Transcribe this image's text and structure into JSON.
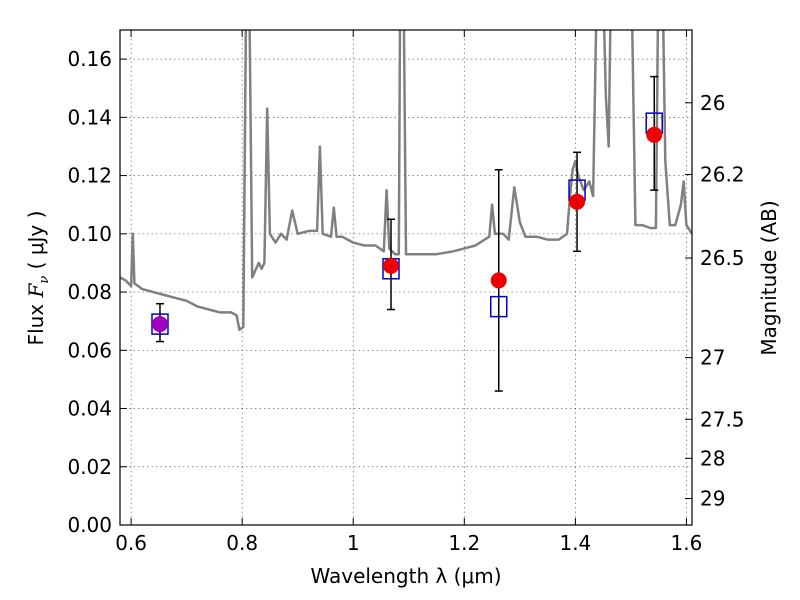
{
  "chart_data": {
    "type": "scatter",
    "xlabel": "Wavelength  λ (μm)",
    "ylabel_parts": [
      "Flux  ",
      "F",
      "ν",
      "  ( μJy )"
    ],
    "ylabel_right": "Magnitude (AB)",
    "xlim": [
      0.58,
      1.61
    ],
    "ylim": [
      0.0,
      0.17
    ],
    "grid": true,
    "x_ticks": [
      0.6,
      0.8,
      1.0,
      1.2,
      1.4,
      1.6
    ],
    "x_tick_labels": [
      "0.6",
      "0.8",
      "1",
      "1.2",
      "1.4",
      "1.6"
    ],
    "y_ticks": [
      0.0,
      0.02,
      0.04,
      0.06,
      0.08,
      0.1,
      0.12,
      0.14,
      0.16
    ],
    "y_tick_labels": [
      "0.00",
      "0.02",
      "0.04",
      "0.06",
      "0.08",
      "0.10",
      "0.12",
      "0.14",
      "0.16"
    ],
    "right_ticks": [
      {
        "flux": 0.145,
        "label": "26"
      },
      {
        "flux": 0.1204,
        "label": "26.2"
      },
      {
        "flux": 0.0917,
        "label": "26.5"
      },
      {
        "flux": 0.0575,
        "label": "27"
      },
      {
        "flux": 0.0363,
        "label": "27.5"
      },
      {
        "flux": 0.0229,
        "label": "28"
      },
      {
        "flux": 0.0091,
        "label": "29"
      }
    ],
    "series": [
      {
        "kind": "line",
        "color": "#808080",
        "points": [
          [
            0.58,
            0.085
          ],
          [
            0.59,
            0.084
          ],
          [
            0.6,
            0.082
          ],
          [
            0.603,
            0.1
          ],
          [
            0.606,
            0.083
          ],
          [
            0.62,
            0.081
          ],
          [
            0.64,
            0.08
          ],
          [
            0.66,
            0.079
          ],
          [
            0.68,
            0.078
          ],
          [
            0.7,
            0.077
          ],
          [
            0.72,
            0.075
          ],
          [
            0.74,
            0.074
          ],
          [
            0.76,
            0.073
          ],
          [
            0.78,
            0.073
          ],
          [
            0.79,
            0.072
          ],
          [
            0.795,
            0.067
          ],
          [
            0.802,
            0.068
          ],
          [
            0.808,
            0.2
          ],
          [
            0.812,
            0.2
          ],
          [
            0.818,
            0.085
          ],
          [
            0.825,
            0.088
          ],
          [
            0.83,
            0.09
          ],
          [
            0.835,
            0.088
          ],
          [
            0.84,
            0.09
          ],
          [
            0.845,
            0.143
          ],
          [
            0.85,
            0.1
          ],
          [
            0.86,
            0.097
          ],
          [
            0.87,
            0.1
          ],
          [
            0.88,
            0.098
          ],
          [
            0.89,
            0.108
          ],
          [
            0.9,
            0.1
          ],
          [
            0.92,
            0.101
          ],
          [
            0.935,
            0.101
          ],
          [
            0.94,
            0.13
          ],
          [
            0.945,
            0.1
          ],
          [
            0.96,
            0.099
          ],
          [
            0.965,
            0.109
          ],
          [
            0.97,
            0.099
          ],
          [
            0.98,
            0.099
          ],
          [
            1.0,
            0.097
          ],
          [
            1.02,
            0.096
          ],
          [
            1.04,
            0.096
          ],
          [
            1.055,
            0.094
          ],
          [
            1.06,
            0.115
          ],
          [
            1.065,
            0.095
          ],
          [
            1.075,
            0.093
          ],
          [
            1.082,
            0.093
          ],
          [
            1.085,
            0.2
          ],
          [
            1.09,
            0.2
          ],
          [
            1.095,
            0.093
          ],
          [
            1.11,
            0.093
          ],
          [
            1.13,
            0.093
          ],
          [
            1.15,
            0.093
          ],
          [
            1.18,
            0.094
          ],
          [
            1.2,
            0.095
          ],
          [
            1.22,
            0.096
          ],
          [
            1.245,
            0.099
          ],
          [
            1.25,
            0.11
          ],
          [
            1.255,
            0.1
          ],
          [
            1.27,
            0.1
          ],
          [
            1.28,
            0.098
          ],
          [
            1.29,
            0.116
          ],
          [
            1.3,
            0.104
          ],
          [
            1.31,
            0.099
          ],
          [
            1.33,
            0.099
          ],
          [
            1.35,
            0.098
          ],
          [
            1.37,
            0.098
          ],
          [
            1.385,
            0.1
          ],
          [
            1.39,
            0.112
          ],
          [
            1.395,
            0.122
          ],
          [
            1.4,
            0.125
          ],
          [
            1.405,
            0.12
          ],
          [
            1.415,
            0.115
          ],
          [
            1.425,
            0.118
          ],
          [
            1.432,
            0.113
          ],
          [
            1.44,
            0.2
          ],
          [
            1.448,
            0.2
          ],
          [
            1.455,
            0.147
          ],
          [
            1.46,
            0.13
          ],
          [
            1.465,
            0.2
          ],
          [
            1.5,
            0.2
          ],
          [
            1.508,
            0.103
          ],
          [
            1.52,
            0.103
          ],
          [
            1.535,
            0.102
          ],
          [
            1.545,
            0.102
          ],
          [
            1.55,
            0.2
          ],
          [
            1.556,
            0.2
          ],
          [
            1.562,
            0.125
          ],
          [
            1.57,
            0.103
          ],
          [
            1.58,
            0.103
          ],
          [
            1.59,
            0.11
          ],
          [
            1.595,
            0.118
          ],
          [
            1.6,
            0.103
          ],
          [
            1.61,
            0.1
          ]
        ]
      },
      {
        "kind": "open-square",
        "color": "#0000cc",
        "points": [
          [
            0.652,
            0.069
          ],
          [
            1.068,
            0.088
          ],
          [
            1.262,
            0.075
          ],
          [
            1.403,
            0.115
          ],
          [
            1.542,
            0.138
          ]
        ]
      },
      {
        "kind": "circle",
        "color": "#ee0000",
        "points": [
          [
            0.652,
            0.069
          ],
          [
            1.068,
            0.089
          ],
          [
            1.262,
            0.084
          ],
          [
            1.403,
            0.111
          ],
          [
            1.542,
            0.134
          ]
        ],
        "point_colors": [
          "#a000c0",
          "#ee0000",
          "#ee0000",
          "#ee0000",
          "#ee0000"
        ]
      },
      {
        "kind": "errorbar",
        "color": "#000000",
        "points": [
          [
            0.652,
            0.063,
            0.076
          ],
          [
            1.068,
            0.074,
            0.105
          ],
          [
            1.262,
            0.046,
            0.122
          ],
          [
            1.403,
            0.094,
            0.128
          ],
          [
            1.542,
            0.115,
            0.154
          ]
        ]
      }
    ]
  }
}
